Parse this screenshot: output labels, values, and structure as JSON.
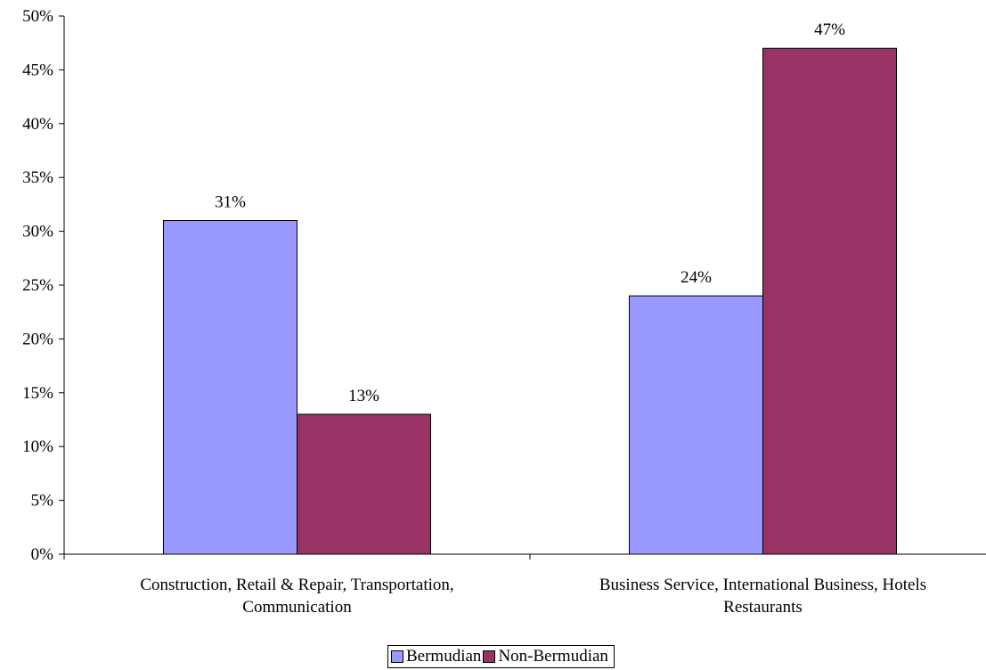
{
  "chart_data": {
    "type": "bar",
    "title": "",
    "xlabel": "",
    "ylabel": "",
    "ylim": [
      0,
      50
    ],
    "ytick_step": 5,
    "ytick_labels": [
      "0%",
      "5%",
      "10%",
      "15%",
      "20%",
      "25%",
      "30%",
      "35%",
      "40%",
      "45%",
      "50%"
    ],
    "grid": false,
    "legend_position": "bottom-center",
    "categories": [
      [
        "Construction, Retail & Repair, Transportation,",
        "Communication"
      ],
      [
        "Business Service, International Business, Hotels",
        "Restaurants"
      ]
    ],
    "series": [
      {
        "name": "Bermudian",
        "color": "#9999ff",
        "values": [
          31,
          24
        ],
        "labels": [
          "31%",
          "24%"
        ]
      },
      {
        "name": "Non-Bermudian",
        "color": "#993366",
        "values": [
          13,
          47
        ],
        "labels": [
          "13%",
          "47%"
        ]
      }
    ]
  }
}
